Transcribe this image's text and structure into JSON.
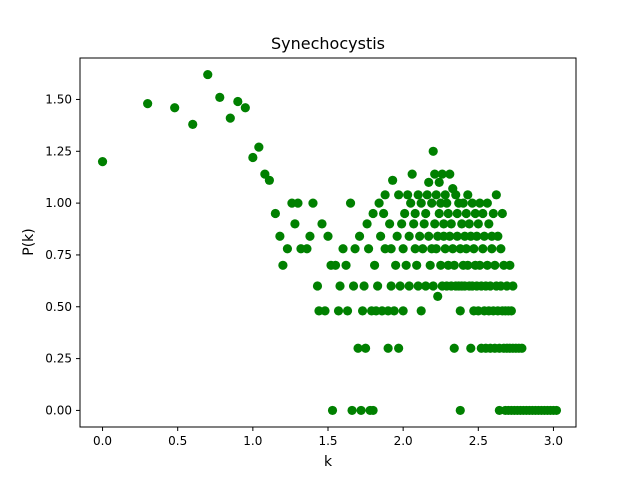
{
  "chart_data": {
    "type": "scatter",
    "title": "Synechocystis",
    "xlabel": "k",
    "ylabel": "P(k)",
    "xlim": [
      -0.15,
      3.15
    ],
    "ylim": [
      -0.08,
      1.7
    ],
    "xticks": [
      0.0,
      0.5,
      1.0,
      1.5,
      2.0,
      2.5,
      3.0
    ],
    "xtick_labels": [
      "0.0",
      "0.5",
      "1.0",
      "1.5",
      "2.0",
      "2.5",
      "3.0"
    ],
    "yticks": [
      0.0,
      0.25,
      0.5,
      0.75,
      1.0,
      1.25,
      1.5
    ],
    "ytick_labels": [
      "0.00",
      "0.25",
      "0.50",
      "0.75",
      "1.00",
      "1.25",
      "1.50"
    ],
    "grid": false,
    "legend": "none",
    "marker_color": "#008000",
    "series": [
      {
        "points": [
          [
            0.0,
            1.2
          ],
          [
            0.3,
            1.48
          ],
          [
            0.48,
            1.46
          ],
          [
            0.6,
            1.38
          ],
          [
            0.7,
            1.62
          ],
          [
            0.78,
            1.51
          ],
          [
            0.85,
            1.41
          ],
          [
            0.9,
            1.49
          ],
          [
            0.95,
            1.46
          ],
          [
            1.0,
            1.22
          ],
          [
            1.04,
            1.27
          ],
          [
            1.08,
            1.14
          ],
          [
            1.11,
            1.11
          ],
          [
            1.15,
            0.95
          ],
          [
            1.18,
            0.84
          ],
          [
            1.2,
            0.7
          ],
          [
            1.23,
            0.78
          ],
          [
            1.26,
            1.0
          ],
          [
            1.28,
            0.9
          ],
          [
            1.3,
            1.0
          ],
          [
            1.32,
            0.78
          ],
          [
            1.36,
            0.78
          ],
          [
            1.38,
            0.84
          ],
          [
            1.4,
            1.0
          ],
          [
            1.43,
            0.6
          ],
          [
            1.44,
            0.48
          ],
          [
            1.46,
            0.9
          ],
          [
            1.48,
            0.48
          ],
          [
            1.5,
            0.84
          ],
          [
            1.52,
            0.7
          ],
          [
            1.53,
            0.0
          ],
          [
            1.55,
            0.7
          ],
          [
            1.57,
            0.48
          ],
          [
            1.58,
            0.6
          ],
          [
            1.6,
            0.78
          ],
          [
            1.62,
            0.7
          ],
          [
            1.63,
            0.48
          ],
          [
            1.65,
            1.0
          ],
          [
            1.66,
            0.0
          ],
          [
            1.67,
            0.6
          ],
          [
            1.68,
            0.78
          ],
          [
            1.7,
            0.3
          ],
          [
            1.71,
            0.84
          ],
          [
            1.72,
            0.0
          ],
          [
            1.73,
            0.48
          ],
          [
            1.74,
            0.6
          ],
          [
            1.75,
            0.3
          ],
          [
            1.76,
            0.9
          ],
          [
            1.77,
            0.78
          ],
          [
            1.78,
            0.0
          ],
          [
            1.79,
            0.48
          ],
          [
            1.8,
            0.0
          ],
          [
            1.8,
            0.95
          ],
          [
            1.81,
            0.7
          ],
          [
            1.82,
            0.48
          ],
          [
            1.83,
            0.6
          ],
          [
            1.84,
            1.0
          ],
          [
            1.85,
            0.84
          ],
          [
            1.86,
            0.48
          ],
          [
            1.87,
            0.95
          ],
          [
            1.88,
            0.78
          ],
          [
            1.88,
            1.04
          ],
          [
            1.9,
            0.48
          ],
          [
            1.9,
            0.3
          ],
          [
            1.91,
            0.9
          ],
          [
            1.92,
            0.6
          ],
          [
            1.92,
            0.78
          ],
          [
            1.93,
            1.11
          ],
          [
            1.94,
            0.48
          ],
          [
            1.95,
            0.7
          ],
          [
            1.96,
            0.84
          ],
          [
            1.97,
            0.3
          ],
          [
            1.97,
            1.04
          ],
          [
            1.98,
            0.6
          ],
          [
            1.99,
            0.9
          ],
          [
            2.0,
            0.48
          ],
          [
            2.0,
            0.78
          ],
          [
            2.01,
            0.95
          ],
          [
            2.02,
            0.7
          ],
          [
            2.03,
            1.04
          ],
          [
            2.04,
            0.6
          ],
          [
            2.04,
            0.84
          ],
          [
            2.05,
            1.0
          ],
          [
            2.06,
            1.14
          ],
          [
            2.07,
            0.9
          ],
          [
            2.08,
            0.78
          ],
          [
            2.08,
            0.95
          ],
          [
            2.09,
            0.7
          ],
          [
            2.1,
            0.6
          ],
          [
            2.1,
            1.04
          ],
          [
            2.11,
            0.84
          ],
          [
            2.12,
            0.48
          ],
          [
            2.12,
            1.0
          ],
          [
            2.13,
            0.78
          ],
          [
            2.14,
            0.9
          ],
          [
            2.15,
            0.6
          ],
          [
            2.15,
            0.95
          ],
          [
            2.16,
            1.04
          ],
          [
            2.17,
            0.84
          ],
          [
            2.17,
            1.1
          ],
          [
            2.18,
            0.7
          ],
          [
            2.19,
            0.78
          ],
          [
            2.19,
            1.0
          ],
          [
            2.2,
            1.25
          ],
          [
            2.2,
            0.6
          ],
          [
            2.21,
            0.9
          ],
          [
            2.21,
            1.14
          ],
          [
            2.22,
            0.78
          ],
          [
            2.22,
            1.04
          ],
          [
            2.23,
            0.84
          ],
          [
            2.23,
            0.55
          ],
          [
            2.24,
            0.95
          ],
          [
            2.24,
            1.1
          ],
          [
            2.25,
            0.7
          ],
          [
            2.25,
            1.0
          ],
          [
            2.26,
            0.6
          ],
          [
            2.26,
            1.14
          ],
          [
            2.27,
            0.84
          ],
          [
            2.27,
            0.9
          ],
          [
            2.28,
            0.78
          ],
          [
            2.28,
            1.04
          ],
          [
            2.29,
            0.6
          ],
          [
            2.29,
            1.0
          ],
          [
            2.3,
            0.7
          ],
          [
            2.3,
            0.95
          ],
          [
            2.31,
            0.84
          ],
          [
            2.31,
            1.14
          ],
          [
            2.32,
            0.6
          ],
          [
            2.32,
            0.9
          ],
          [
            2.33,
            0.78
          ],
          [
            2.33,
            1.07
          ],
          [
            2.34,
            0.3
          ],
          [
            2.34,
            0.7
          ],
          [
            2.35,
            0.6
          ],
          [
            2.35,
            1.04
          ],
          [
            2.36,
            0.84
          ],
          [
            2.36,
            0.95
          ],
          [
            2.37,
            0.6
          ],
          [
            2.37,
            1.0
          ],
          [
            2.38,
            0.48
          ],
          [
            2.38,
            0.78
          ],
          [
            2.38,
            0.0
          ],
          [
            2.39,
            0.6
          ],
          [
            2.39,
            0.9
          ],
          [
            2.4,
            0.7
          ],
          [
            2.4,
            1.0
          ],
          [
            2.41,
            0.84
          ],
          [
            2.41,
            0.6
          ],
          [
            2.42,
            0.95
          ],
          [
            2.42,
            0.78
          ],
          [
            2.43,
            0.7
          ],
          [
            2.43,
            1.04
          ],
          [
            2.44,
            0.6
          ],
          [
            2.44,
            0.9
          ],
          [
            2.45,
            0.84
          ],
          [
            2.45,
            0.3
          ],
          [
            2.46,
            0.6
          ],
          [
            2.46,
            1.0
          ],
          [
            2.47,
            0.48
          ],
          [
            2.47,
            0.78
          ],
          [
            2.48,
            0.7
          ],
          [
            2.48,
            0.95
          ],
          [
            2.49,
            0.6
          ],
          [
            2.49,
            0.84
          ],
          [
            2.5,
            0.48
          ],
          [
            2.5,
            0.9
          ],
          [
            2.51,
            0.7
          ],
          [
            2.51,
            1.0
          ],
          [
            2.52,
            0.6
          ],
          [
            2.52,
            0.3
          ],
          [
            2.53,
            0.78
          ],
          [
            2.53,
            0.95
          ],
          [
            2.54,
            0.48
          ],
          [
            2.54,
            0.84
          ],
          [
            2.55,
            0.6
          ],
          [
            2.55,
            0.3
          ],
          [
            2.56,
            0.7
          ],
          [
            2.56,
            1.0
          ],
          [
            2.57,
            0.48
          ],
          [
            2.57,
            0.9
          ],
          [
            2.58,
            0.3
          ],
          [
            2.58,
            0.6
          ],
          [
            2.59,
            0.78
          ],
          [
            2.59,
            0.84
          ],
          [
            2.6,
            0.48
          ],
          [
            2.6,
            0.95
          ],
          [
            2.61,
            0.3
          ],
          [
            2.61,
            0.7
          ],
          [
            2.62,
            0.6
          ],
          [
            2.62,
            1.04
          ],
          [
            2.63,
            0.48
          ],
          [
            2.63,
            0.84
          ],
          [
            2.64,
            0.3
          ],
          [
            2.64,
            0.0
          ],
          [
            2.65,
            0.6
          ],
          [
            2.65,
            0.78
          ],
          [
            2.66,
            0.48
          ],
          [
            2.66,
            0.95
          ],
          [
            2.67,
            0.3
          ],
          [
            2.67,
            0.7
          ],
          [
            2.68,
            0.48
          ],
          [
            2.68,
            0.0
          ],
          [
            2.69,
            0.3
          ],
          [
            2.69,
            0.6
          ],
          [
            2.7,
            0.48
          ],
          [
            2.7,
            0.0
          ],
          [
            2.71,
            0.3
          ],
          [
            2.71,
            0.7
          ],
          [
            2.72,
            0.48
          ],
          [
            2.72,
            0.0
          ],
          [
            2.73,
            0.3
          ],
          [
            2.73,
            0.6
          ],
          [
            2.74,
            0.0
          ],
          [
            2.75,
            0.3
          ],
          [
            2.76,
            0.0
          ],
          [
            2.77,
            0.3
          ],
          [
            2.78,
            0.0
          ],
          [
            2.79,
            0.3
          ],
          [
            2.8,
            0.0
          ],
          [
            2.82,
            0.0
          ],
          [
            2.84,
            0.0
          ],
          [
            2.86,
            0.0
          ],
          [
            2.88,
            0.0
          ],
          [
            2.9,
            0.0
          ],
          [
            2.92,
            0.0
          ],
          [
            2.94,
            0.0
          ],
          [
            2.96,
            0.0
          ],
          [
            2.98,
            0.0
          ],
          [
            3.0,
            0.0
          ],
          [
            3.02,
            0.0
          ]
        ]
      }
    ]
  }
}
